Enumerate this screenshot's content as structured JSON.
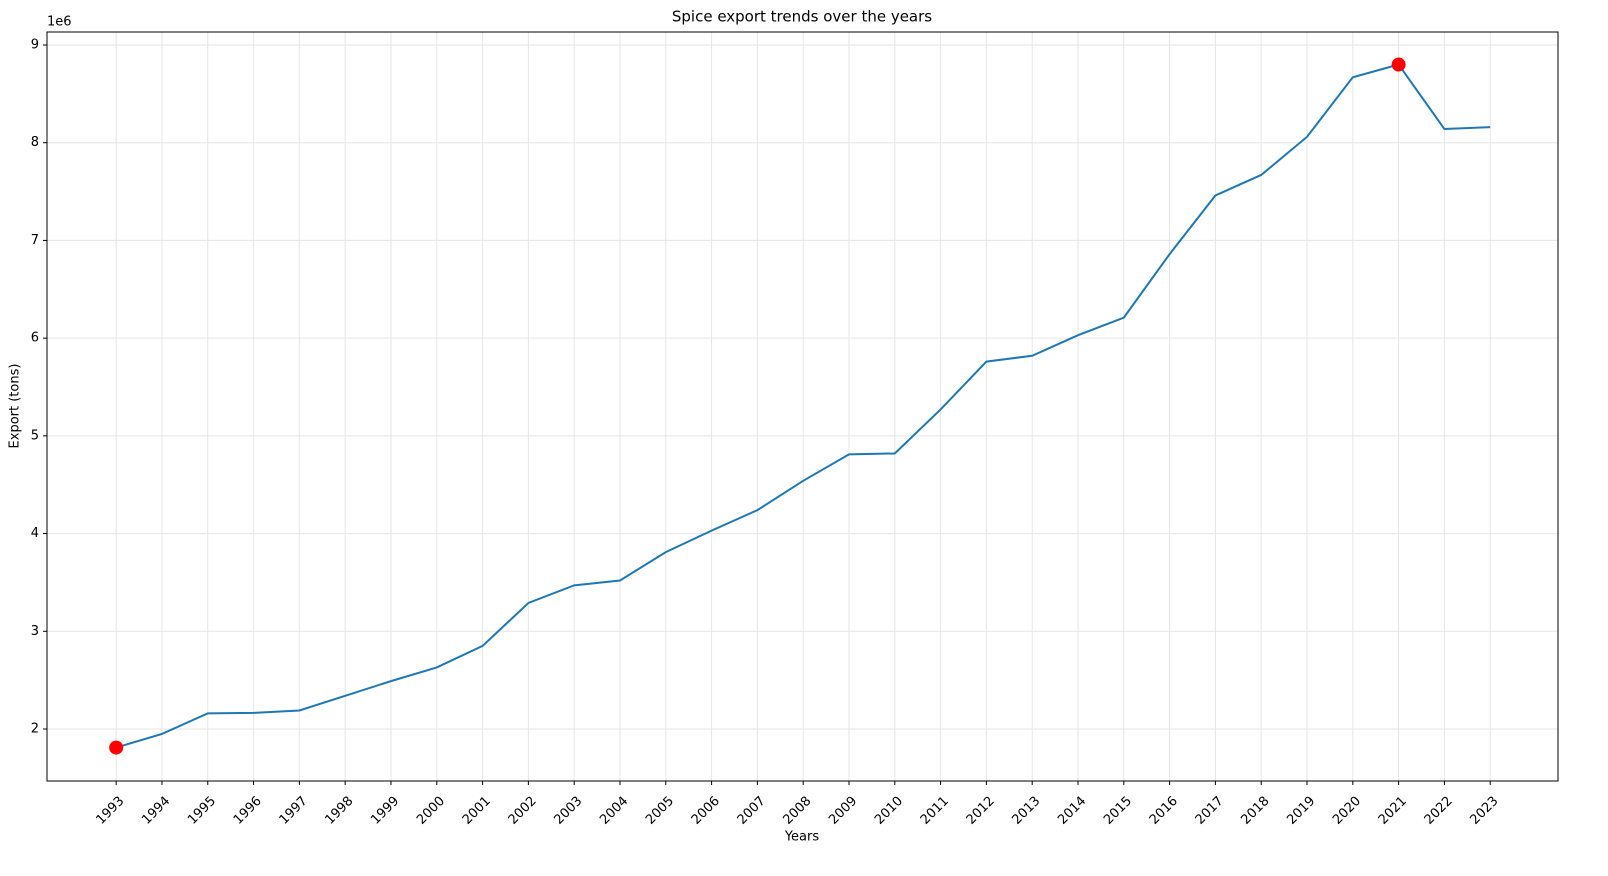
{
  "chart_data": {
    "type": "line",
    "title": "Spice export trends over the years",
    "x_label": "Years",
    "y_label": "Export (tons)",
    "y_offset_label": "1e6",
    "x": [
      1993,
      1994,
      1995,
      1996,
      1997,
      1998,
      1999,
      2000,
      2001,
      2002,
      2003,
      2004,
      2005,
      2006,
      2007,
      2008,
      2009,
      2010,
      2011,
      2012,
      2013,
      2014,
      2015,
      2016,
      2017,
      2018,
      2019,
      2020,
      2021,
      2022,
      2023
    ],
    "series": [
      {
        "color": "#1f77b4",
        "values": [
          1810000,
          1950000,
          2160000,
          2165000,
          2190000,
          2340000,
          2490000,
          2630000,
          2850000,
          3290000,
          3470000,
          3520000,
          3810000,
          4030000,
          4240000,
          4540000,
          4810000,
          4820000,
          5270000,
          5760000,
          5820000,
          6030000,
          6210000,
          6860000,
          7460000,
          7670000,
          8060000,
          8670000,
          8800000,
          8140000,
          8160000
        ]
      }
    ],
    "markers": {
      "color": "#ff0000",
      "x": [
        1993,
        2021
      ],
      "values": [
        1810000,
        8800000
      ]
    },
    "xlim": [
      1991.49,
      2024.48
    ],
    "ylim": [
      1468000,
      9133000
    ],
    "xticks": [
      1993,
      1994,
      1995,
      1996,
      1997,
      1998,
      1999,
      2000,
      2001,
      2002,
      2003,
      2004,
      2005,
      2006,
      2007,
      2008,
      2009,
      2010,
      2011,
      2012,
      2013,
      2014,
      2015,
      2016,
      2017,
      2018,
      2019,
      2020,
      2021,
      2022,
      2023
    ],
    "yticks": [
      {
        "value": 2000000,
        "label": "2"
      },
      {
        "value": 3000000,
        "label": "3"
      },
      {
        "value": 4000000,
        "label": "4"
      },
      {
        "value": 5000000,
        "label": "5"
      },
      {
        "value": 6000000,
        "label": "6"
      },
      {
        "value": 7000000,
        "label": "7"
      },
      {
        "value": 8000000,
        "label": "8"
      },
      {
        "value": 9000000,
        "label": "9"
      }
    ],
    "grid": true
  }
}
